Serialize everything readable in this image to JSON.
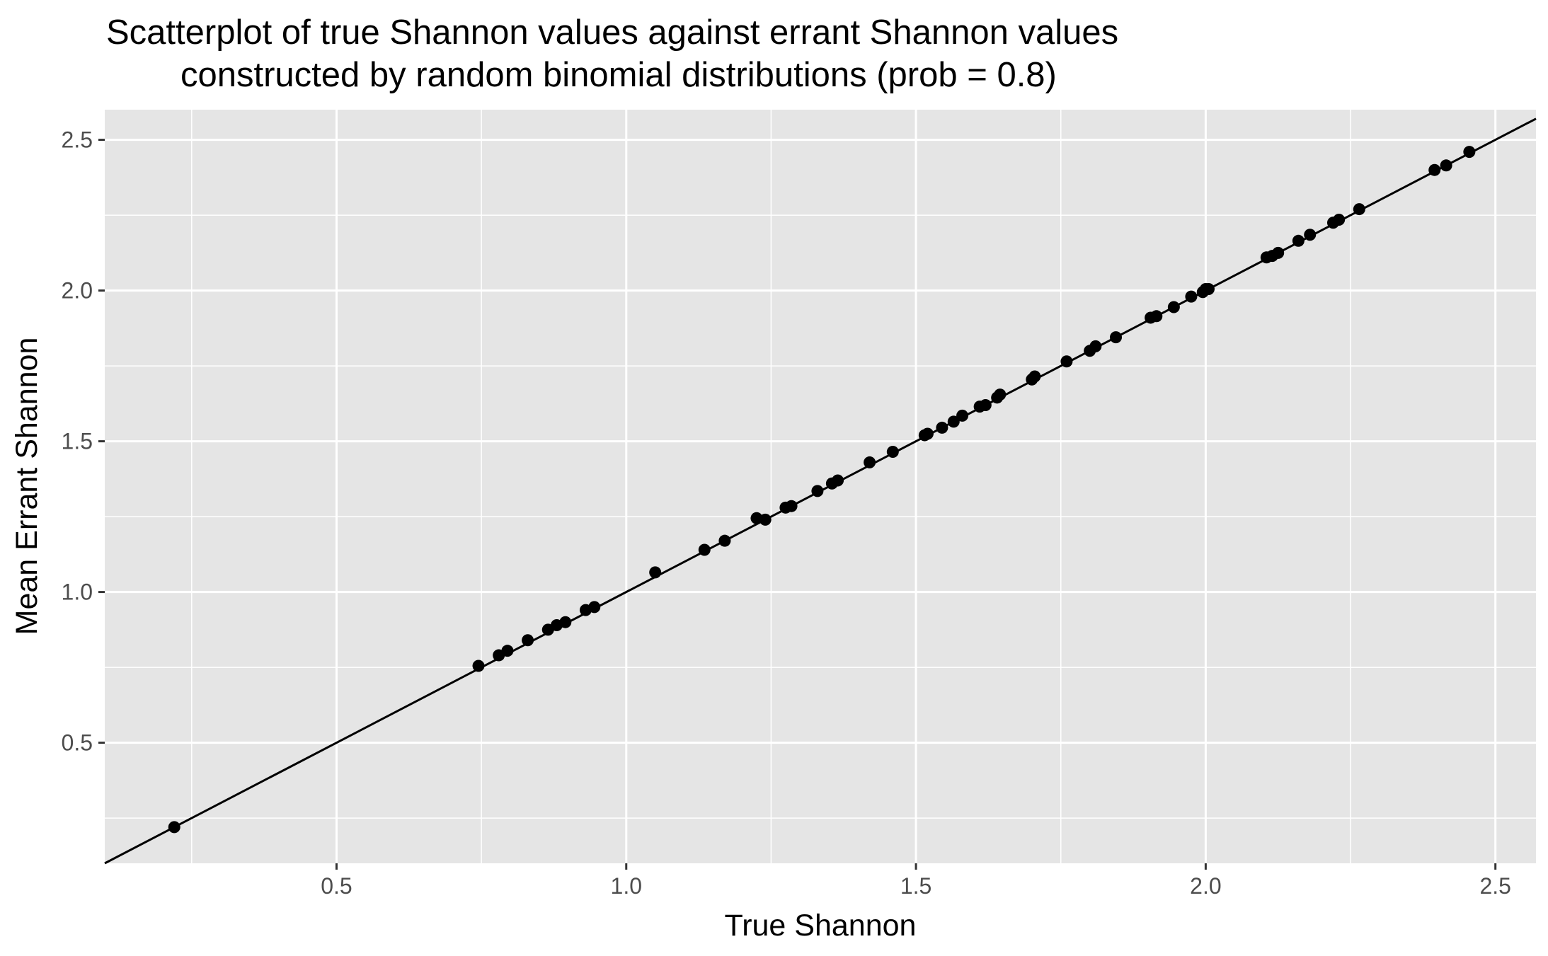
{
  "chart_data": {
    "type": "scatter",
    "title": "Scatterplot of true Shannon values against errant Shannon values",
    "subtitle": "constructed by random binomial distributions (prob = 0.8)",
    "xlabel": "True Shannon",
    "ylabel": "Mean Errant Shannon",
    "xlim": [
      0.1,
      2.57
    ],
    "ylim": [
      0.1,
      2.6
    ],
    "x_ticks": [
      0.5,
      1.0,
      1.5,
      2.0,
      2.5
    ],
    "x_tick_labels": [
      "0.5",
      "1.0",
      "1.5",
      "2.0",
      "2.5"
    ],
    "y_ticks": [
      0.5,
      1.0,
      1.5,
      2.0,
      2.5
    ],
    "y_tick_labels": [
      "0.5",
      "1.0",
      "1.5",
      "2.0",
      "2.5"
    ],
    "grid": true,
    "background": "#e5e5e5",
    "grid_color": "#ffffff",
    "point_color": "#000000",
    "reference_line": {
      "slope": 1,
      "intercept": 0
    },
    "points": [
      {
        "x": 0.22,
        "y": 0.22
      },
      {
        "x": 0.745,
        "y": 0.755
      },
      {
        "x": 0.78,
        "y": 0.79
      },
      {
        "x": 0.795,
        "y": 0.805
      },
      {
        "x": 0.83,
        "y": 0.84
      },
      {
        "x": 0.865,
        "y": 0.875
      },
      {
        "x": 0.88,
        "y": 0.89
      },
      {
        "x": 0.895,
        "y": 0.9
      },
      {
        "x": 0.93,
        "y": 0.94
      },
      {
        "x": 0.945,
        "y": 0.95
      },
      {
        "x": 1.05,
        "y": 1.065
      },
      {
        "x": 1.135,
        "y": 1.14
      },
      {
        "x": 1.17,
        "y": 1.17
      },
      {
        "x": 1.225,
        "y": 1.245
      },
      {
        "x": 1.24,
        "y": 1.24
      },
      {
        "x": 1.275,
        "y": 1.28
      },
      {
        "x": 1.285,
        "y": 1.285
      },
      {
        "x": 1.33,
        "y": 1.335
      },
      {
        "x": 1.355,
        "y": 1.36
      },
      {
        "x": 1.365,
        "y": 1.37
      },
      {
        "x": 1.42,
        "y": 1.43
      },
      {
        "x": 1.46,
        "y": 1.465
      },
      {
        "x": 1.515,
        "y": 1.52
      },
      {
        "x": 1.52,
        "y": 1.525
      },
      {
        "x": 1.545,
        "y": 1.545
      },
      {
        "x": 1.565,
        "y": 1.565
      },
      {
        "x": 1.58,
        "y": 1.585
      },
      {
        "x": 1.61,
        "y": 1.615
      },
      {
        "x": 1.62,
        "y": 1.62
      },
      {
        "x": 1.64,
        "y": 1.645
      },
      {
        "x": 1.645,
        "y": 1.655
      },
      {
        "x": 1.7,
        "y": 1.705
      },
      {
        "x": 1.705,
        "y": 1.715
      },
      {
        "x": 1.76,
        "y": 1.765
      },
      {
        "x": 1.8,
        "y": 1.8
      },
      {
        "x": 1.81,
        "y": 1.815
      },
      {
        "x": 1.845,
        "y": 1.845
      },
      {
        "x": 1.905,
        "y": 1.91
      },
      {
        "x": 1.915,
        "y": 1.915
      },
      {
        "x": 1.945,
        "y": 1.945
      },
      {
        "x": 1.975,
        "y": 1.98
      },
      {
        "x": 1.995,
        "y": 1.995
      },
      {
        "x": 2.0,
        "y": 2.005
      },
      {
        "x": 2.005,
        "y": 2.005
      },
      {
        "x": 2.105,
        "y": 2.11
      },
      {
        "x": 2.115,
        "y": 2.115
      },
      {
        "x": 2.125,
        "y": 2.125
      },
      {
        "x": 2.16,
        "y": 2.165
      },
      {
        "x": 2.18,
        "y": 2.185
      },
      {
        "x": 2.22,
        "y": 2.225
      },
      {
        "x": 2.23,
        "y": 2.235
      },
      {
        "x": 2.265,
        "y": 2.27
      },
      {
        "x": 2.395,
        "y": 2.4
      },
      {
        "x": 2.415,
        "y": 2.415
      },
      {
        "x": 2.455,
        "y": 2.46
      }
    ]
  }
}
